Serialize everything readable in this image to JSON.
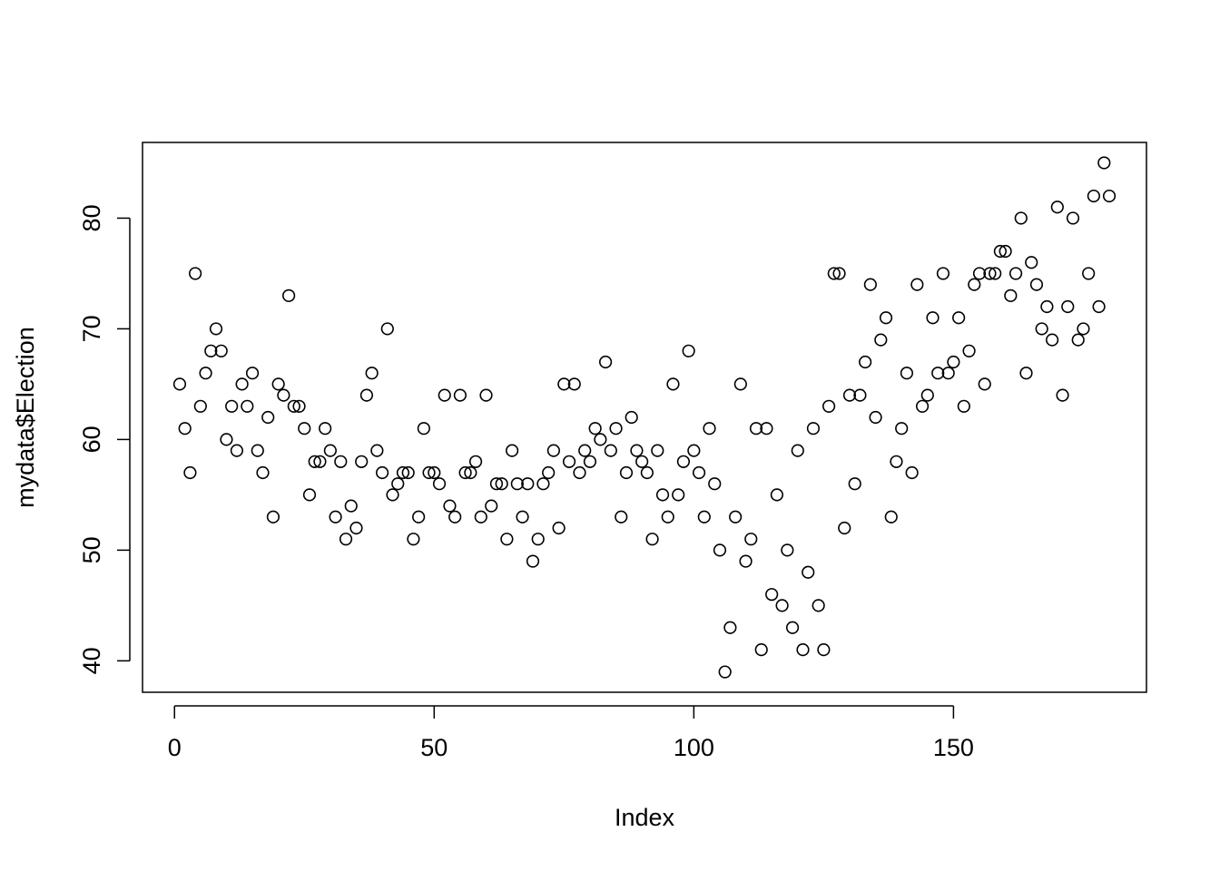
{
  "chart_data": {
    "type": "scatter",
    "x_label": "Index",
    "y_label": "mydata$Election",
    "x": [
      1,
      2,
      3,
      4,
      5,
      6,
      7,
      8,
      9,
      10,
      11,
      12,
      13,
      14,
      15,
      16,
      17,
      18,
      19,
      20,
      21,
      22,
      23,
      24,
      25,
      26,
      27,
      28,
      29,
      30,
      31,
      32,
      33,
      34,
      35,
      36,
      37,
      38,
      39,
      40,
      41,
      42,
      43,
      44,
      45,
      46,
      47,
      48,
      49,
      50,
      51,
      52,
      53,
      54,
      55,
      56,
      57,
      58,
      59,
      60,
      61,
      62,
      63,
      64,
      65,
      66,
      67,
      68,
      69,
      70,
      71,
      72,
      73,
      74,
      75,
      76,
      77,
      78,
      79,
      80,
      81,
      82,
      83,
      84,
      85,
      86,
      87,
      88,
      89,
      90,
      91,
      92,
      93,
      94,
      95,
      96,
      97,
      98,
      99,
      100,
      101,
      102,
      103,
      104,
      105,
      106,
      107,
      108,
      109,
      110,
      111,
      112,
      113,
      114,
      115,
      116,
      117,
      118,
      119,
      120,
      121,
      122,
      123,
      124,
      125,
      126,
      127,
      128,
      129,
      130,
      131,
      132,
      133,
      134,
      135,
      136,
      137,
      138,
      139,
      140,
      141,
      142,
      143,
      144,
      145,
      146,
      147,
      148,
      149,
      150,
      151,
      152,
      153,
      154,
      155,
      156,
      157,
      158,
      159,
      160,
      161,
      162,
      163,
      164,
      165,
      166,
      167,
      168,
      169,
      170,
      171,
      172,
      173,
      174,
      175,
      176,
      177,
      178,
      179,
      180
    ],
    "values": [
      65,
      61,
      57,
      75,
      63,
      66,
      68,
      70,
      68,
      60,
      63,
      59,
      65,
      63,
      66,
      59,
      57,
      62,
      53,
      65,
      64,
      73,
      63,
      63,
      61,
      55,
      58,
      58,
      61,
      59,
      53,
      58,
      51,
      54,
      52,
      58,
      64,
      66,
      59,
      57,
      70,
      55,
      56,
      57,
      57,
      51,
      53,
      61,
      57,
      57,
      56,
      64,
      54,
      53,
      64,
      57,
      57,
      58,
      53,
      64,
      54,
      56,
      56,
      51,
      59,
      56,
      53,
      56,
      49,
      51,
      56,
      57,
      59,
      52,
      65,
      58,
      65,
      57,
      59,
      58,
      61,
      60,
      67,
      59,
      61,
      53,
      57,
      62,
      59,
      58,
      57,
      51,
      59,
      55,
      53,
      65,
      55,
      58,
      68,
      59,
      57,
      53,
      61,
      56,
      50,
      39,
      43,
      53,
      65,
      49,
      51,
      61,
      41,
      61,
      46,
      55,
      45,
      50,
      43,
      59,
      41,
      48,
      61,
      45,
      41,
      63,
      75,
      75,
      52,
      64,
      56,
      64,
      67,
      74,
      62,
      69,
      71,
      53,
      58,
      61,
      66,
      57,
      74,
      63,
      64,
      71,
      66,
      75,
      66,
      67,
      71,
      63,
      68,
      74,
      75,
      65,
      75,
      75,
      77,
      77,
      73,
      75,
      80,
      66,
      76,
      74,
      70,
      72,
      69,
      81,
      64,
      72,
      80,
      69,
      70,
      75,
      82,
      72,
      85,
      82
    ],
    "color": "#000000",
    "xlim": [
      -6.16,
      187.16
    ],
    "ylim": [
      37.16,
      86.84
    ],
    "xticks": [
      0,
      50,
      100,
      150
    ],
    "yticks": [
      40,
      50,
      60,
      70,
      80
    ]
  }
}
